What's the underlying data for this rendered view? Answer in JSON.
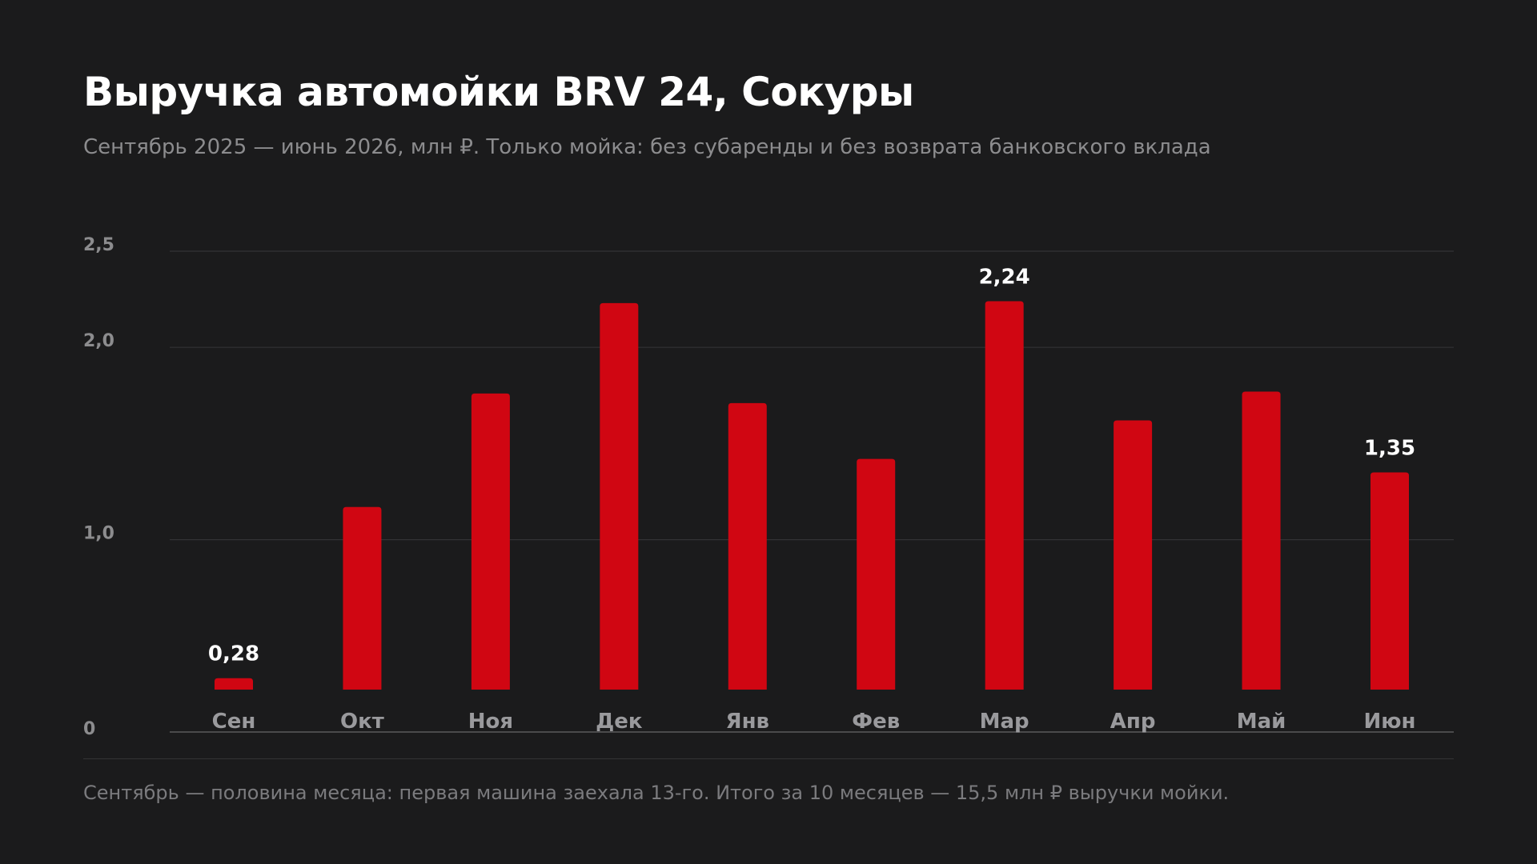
{
  "title": "Выручка автомойки BRV 24, Сокуры",
  "subtitle": "Сентябрь 2025 — июнь 2026, млн ₽. Только мойка: без субаренды и без возврата банковского вклада",
  "footnote": "Сентябрь — половина месяца: первая машина заехала 13-го. Итого за 10 месяцев — 15,5 млн ₽ выручки мойки.",
  "colors": {
    "background": "#1b1b1c",
    "bar": "#d00612",
    "grid": "#333335",
    "axis_tick_text": "#8c8c8e",
    "category_text": "#9a9a9d",
    "data_label": "#ffffff"
  },
  "chart_data": {
    "type": "bar",
    "title": "",
    "xlabel": "",
    "ylabel": "",
    "categories": [
      "Сен",
      "Окт",
      "Ноя",
      "Дек",
      "Янв",
      "Фев",
      "Мар",
      "Апр",
      "Май",
      "Июн"
    ],
    "series": [
      {
        "values": [
          0.28,
          1.17,
          1.76,
          2.23,
          1.71,
          1.42,
          2.24,
          1.62,
          1.77,
          1.35
        ]
      }
    ],
    "data_labels": [
      {
        "category": "Сен",
        "text": "0,28"
      },
      {
        "category": "Мар",
        "text": "2,24"
      },
      {
        "category": "Июн",
        "text": "1,35"
      }
    ],
    "y_ticks": [
      {
        "value": 0,
        "label": "0"
      },
      {
        "value": 1.0,
        "label": "1,0"
      },
      {
        "value": 2.0,
        "label": "2,0"
      },
      {
        "value": 2.5,
        "label": "2,5"
      }
    ],
    "ylim": [
      0,
      2.5
    ],
    "grid": true,
    "legend": "none"
  }
}
